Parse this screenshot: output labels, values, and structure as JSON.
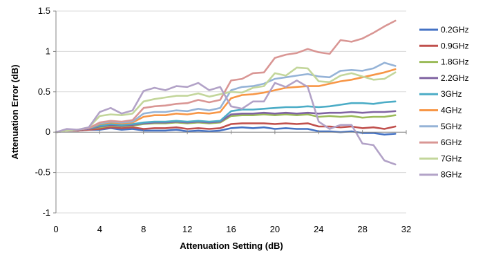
{
  "chart_data": {
    "type": "line",
    "title": "",
    "xlabel": "Attenuation Setting (dB)",
    "ylabel": "Attenuation Error (dB)",
    "xlim": [
      0,
      32
    ],
    "ylim": [
      -1,
      1.5
    ],
    "xticks": [
      0,
      4,
      8,
      12,
      16,
      20,
      24,
      28,
      32
    ],
    "xtick_labels": [
      "0",
      "4",
      "8",
      "12",
      "16",
      "20",
      "24",
      "28",
      "32"
    ],
    "yticks": [
      -1,
      -0.5,
      0,
      0.5,
      1,
      1.5
    ],
    "ytick_labels": [
      "-1",
      "-0.5",
      "0",
      "0.5",
      "1",
      "1.5"
    ],
    "grid": true,
    "legend_position": "right",
    "x": [
      0,
      1,
      2,
      3,
      4,
      5,
      6,
      7,
      8,
      9,
      10,
      11,
      12,
      13,
      14,
      15,
      16,
      17,
      18,
      19,
      20,
      21,
      22,
      23,
      24,
      25,
      26,
      27,
      28,
      29,
      30,
      31
    ],
    "series": [
      {
        "name": "0.2GHz",
        "color": "#4472C4",
        "values": [
          0,
          0.02,
          0.02,
          0.03,
          0.03,
          0.05,
          0.03,
          0.04,
          0.02,
          0.02,
          0.02,
          0.03,
          0.01,
          0.02,
          0.01,
          0.02,
          0.05,
          0.06,
          0.05,
          0.06,
          0.04,
          0.05,
          0.04,
          0.04,
          0.01,
          0.01,
          0.0,
          0.01,
          -0.01,
          -0.01,
          -0.03,
          -0.02
        ]
      },
      {
        "name": "0.9GHz",
        "color": "#C0504D",
        "values": [
          0,
          0.02,
          0.02,
          0.03,
          0.04,
          0.06,
          0.05,
          0.06,
          0.04,
          0.05,
          0.05,
          0.06,
          0.04,
          0.05,
          0.04,
          0.05,
          0.1,
          0.11,
          0.11,
          0.11,
          0.1,
          0.11,
          0.1,
          0.11,
          0.07,
          0.07,
          0.06,
          0.07,
          0.05,
          0.06,
          0.04,
          0.07
        ]
      },
      {
        "name": "1.8GHz",
        "color": "#9BBB59",
        "values": [
          0,
          0.02,
          0.03,
          0.04,
          0.06,
          0.08,
          0.07,
          0.08,
          0.1,
          0.11,
          0.11,
          0.12,
          0.11,
          0.12,
          0.11,
          0.12,
          0.2,
          0.21,
          0.21,
          0.22,
          0.21,
          0.22,
          0.21,
          0.22,
          0.19,
          0.2,
          0.19,
          0.2,
          0.18,
          0.19,
          0.19,
          0.21
        ]
      },
      {
        "name": "2.2GHz",
        "color": "#8064A2",
        "values": [
          0,
          0.02,
          0.03,
          0.04,
          0.07,
          0.09,
          0.08,
          0.09,
          0.11,
          0.12,
          0.12,
          0.13,
          0.12,
          0.13,
          0.12,
          0.13,
          0.22,
          0.23,
          0.23,
          0.24,
          0.23,
          0.24,
          0.23,
          0.24,
          0.23,
          0.24,
          0.24,
          0.25,
          0.24,
          0.25,
          0.25,
          0.26
        ]
      },
      {
        "name": "3GHz",
        "color": "#4BACC6",
        "values": [
          0,
          0.02,
          0.03,
          0.05,
          0.08,
          0.1,
          0.09,
          0.1,
          0.12,
          0.13,
          0.13,
          0.14,
          0.13,
          0.14,
          0.13,
          0.14,
          0.26,
          0.28,
          0.28,
          0.29,
          0.3,
          0.31,
          0.31,
          0.32,
          0.31,
          0.32,
          0.34,
          0.36,
          0.36,
          0.35,
          0.37,
          0.38
        ]
      },
      {
        "name": "4GHz",
        "color": "#F79646",
        "values": [
          0,
          0.02,
          0.03,
          0.05,
          0.1,
          0.12,
          0.11,
          0.12,
          0.19,
          0.21,
          0.21,
          0.23,
          0.22,
          0.24,
          0.23,
          0.25,
          0.42,
          0.46,
          0.47,
          0.49,
          0.52,
          0.55,
          0.56,
          0.57,
          0.57,
          0.6,
          0.63,
          0.65,
          0.68,
          0.71,
          0.74,
          0.78
        ]
      },
      {
        "name": "5GHz",
        "color": "#95B3D7",
        "values": [
          0,
          0.02,
          0.03,
          0.05,
          0.11,
          0.13,
          0.12,
          0.13,
          0.23,
          0.25,
          0.25,
          0.27,
          0.26,
          0.29,
          0.27,
          0.3,
          0.52,
          0.56,
          0.57,
          0.6,
          0.66,
          0.68,
          0.7,
          0.72,
          0.69,
          0.68,
          0.76,
          0.77,
          0.76,
          0.79,
          0.86,
          0.82
        ]
      },
      {
        "name": "6GHz",
        "color": "#D99694",
        "values": [
          0,
          0.02,
          0.03,
          0.05,
          0.12,
          0.14,
          0.13,
          0.15,
          0.3,
          0.32,
          0.33,
          0.35,
          0.36,
          0.4,
          0.37,
          0.4,
          0.64,
          0.66,
          0.73,
          0.74,
          0.92,
          0.96,
          0.98,
          1.03,
          0.99,
          0.97,
          1.14,
          1.12,
          1.16,
          1.23,
          1.31,
          1.38
        ]
      },
      {
        "name": "7GHz",
        "color": "#C3D69B",
        "values": [
          0,
          0.02,
          0.03,
          0.06,
          0.2,
          0.22,
          0.21,
          0.23,
          0.38,
          0.41,
          0.43,
          0.45,
          0.45,
          0.48,
          0.44,
          0.47,
          0.5,
          0.49,
          0.55,
          0.57,
          0.73,
          0.7,
          0.8,
          0.79,
          0.63,
          0.62,
          0.7,
          0.73,
          0.69,
          0.65,
          0.66,
          0.74
        ]
      },
      {
        "name": "8GHz",
        "color": "#B2A2C7",
        "values": [
          0,
          0.04,
          0.03,
          0.06,
          0.25,
          0.3,
          0.23,
          0.27,
          0.51,
          0.55,
          0.52,
          0.57,
          0.56,
          0.61,
          0.52,
          0.56,
          0.32,
          0.29,
          0.38,
          0.38,
          0.61,
          0.56,
          0.64,
          0.56,
          0.13,
          0.04,
          0.09,
          0.09,
          -0.14,
          -0.16,
          -0.35,
          -0.4
        ]
      }
    ]
  }
}
